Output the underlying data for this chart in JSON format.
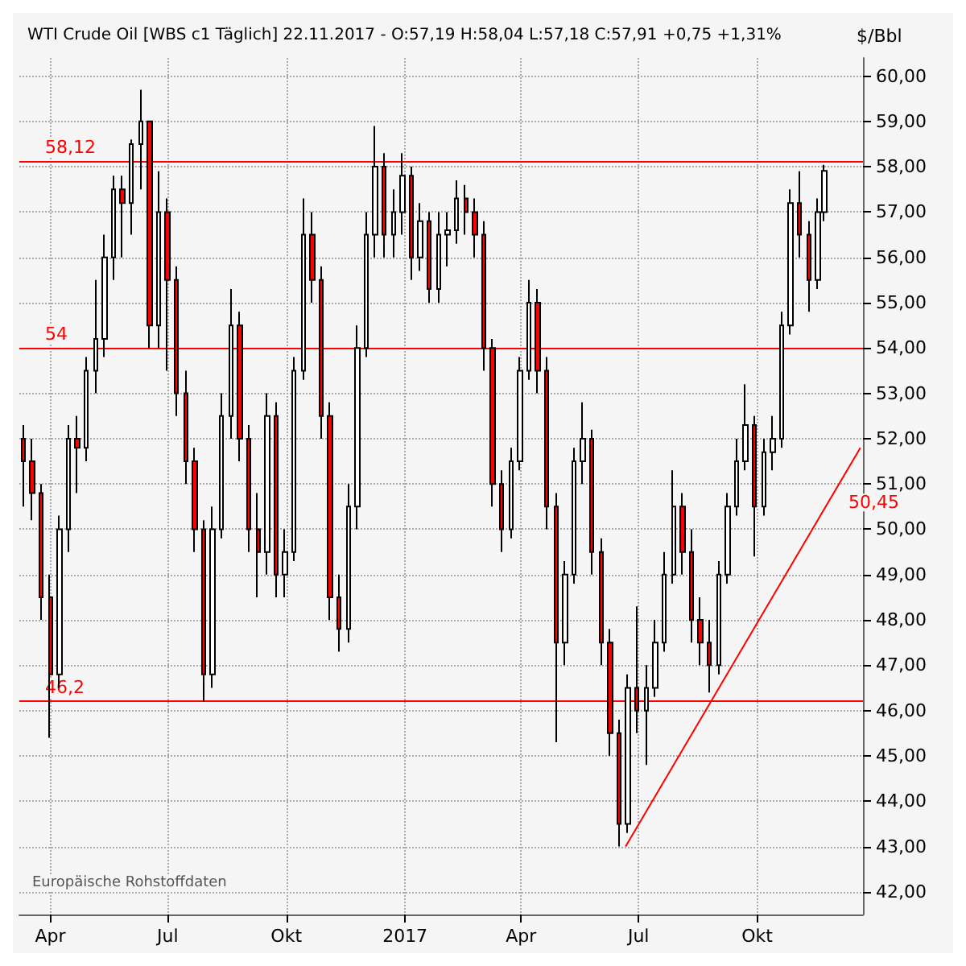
{
  "chart_data": {
    "type": "candlestick",
    "title": "WTI Crude Oil [WBS c1 Täglich] 22.11.2017 - O:57,19 H:58,04 L:57,18 C:57,91 +0,75 +1,31%",
    "ylabel": "$/Bbl",
    "x": [
      "2016-03-11",
      "2016-03-18",
      "2016-03-25",
      "2016-04-01",
      "2016-04-08",
      "2016-04-15",
      "2016-04-22",
      "2016-04-29",
      "2016-05-06",
      "2016-05-13",
      "2016-05-20",
      "2016-05-27",
      "2016-06-03",
      "2016-06-10",
      "2016-06-17",
      "2016-06-24",
      "2016-07-01",
      "2016-07-08",
      "2016-07-15",
      "2016-07-22",
      "2016-07-29",
      "2016-08-05",
      "2016-08-12",
      "2016-08-19",
      "2016-08-26",
      "2016-09-02",
      "2016-09-09",
      "2016-09-16",
      "2016-09-23",
      "2016-09-30",
      "2016-10-07",
      "2016-10-14",
      "2016-10-21",
      "2016-10-28",
      "2016-11-04",
      "2016-11-11",
      "2016-11-18",
      "2016-11-25",
      "2016-12-02",
      "2016-12-09",
      "2016-12-16",
      "2016-12-23",
      "2016-12-30",
      "2017-01-06",
      "2017-01-13",
      "2017-01-20",
      "2017-01-27",
      "2017-02-03",
      "2017-02-10",
      "2017-02-17",
      "2017-02-24",
      "2017-03-03",
      "2017-03-10",
      "2017-03-17",
      "2017-03-24",
      "2017-03-31",
      "2017-04-07",
      "2017-04-14",
      "2017-04-21",
      "2017-04-28",
      "2017-05-05",
      "2017-05-12",
      "2017-05-19",
      "2017-05-26",
      "2017-06-02",
      "2017-06-09",
      "2017-06-16",
      "2017-06-23",
      "2017-06-30",
      "2017-07-07",
      "2017-07-14",
      "2017-07-21",
      "2017-07-28",
      "2017-08-04",
      "2017-08-11",
      "2017-08-18",
      "2017-08-25",
      "2017-09-01",
      "2017-09-08",
      "2017-09-15",
      "2017-09-22",
      "2017-09-29",
      "2017-10-06",
      "2017-10-13",
      "2017-10-20",
      "2017-10-27",
      "2017-11-03",
      "2017-11-10",
      "2017-11-17",
      "2017-11-22"
    ],
    "ohlc": [
      [
        52.0,
        52.3,
        50.5,
        51.5
      ],
      [
        51.5,
        52.0,
        50.2,
        50.8
      ],
      [
        50.8,
        51.0,
        48.0,
        48.5
      ],
      [
        48.5,
        49.0,
        45.4,
        46.8
      ],
      [
        46.8,
        50.3,
        46.5,
        50.0
      ],
      [
        50.0,
        52.3,
        49.5,
        52.0
      ],
      [
        52.0,
        52.5,
        50.8,
        51.8
      ],
      [
        51.8,
        53.8,
        51.5,
        53.5
      ],
      [
        53.5,
        55.5,
        53.0,
        54.2
      ],
      [
        54.2,
        56.5,
        53.8,
        56.0
      ],
      [
        56.0,
        57.8,
        55.5,
        57.5
      ],
      [
        57.5,
        57.8,
        56.0,
        57.2
      ],
      [
        57.2,
        58.6,
        56.5,
        58.5
      ],
      [
        58.5,
        59.7,
        57.5,
        59.0
      ],
      [
        59.0,
        59.0,
        54.0,
        54.5
      ],
      [
        54.5,
        57.9,
        54.0,
        57.0
      ],
      [
        57.0,
        57.3,
        53.5,
        55.5
      ],
      [
        55.5,
        55.8,
        52.5,
        53.0
      ],
      [
        53.0,
        53.5,
        51.0,
        51.5
      ],
      [
        51.5,
        51.8,
        49.5,
        50.0
      ],
      [
        50.0,
        50.2,
        46.2,
        46.8
      ],
      [
        46.8,
        50.5,
        46.5,
        50.0
      ],
      [
        50.0,
        53.0,
        49.8,
        52.5
      ],
      [
        52.5,
        55.3,
        52.0,
        54.5
      ],
      [
        54.5,
        54.8,
        51.5,
        52.0
      ],
      [
        52.0,
        52.3,
        49.5,
        50.0
      ],
      [
        50.0,
        50.8,
        48.5,
        49.5
      ],
      [
        49.5,
        53.0,
        49.0,
        52.5
      ],
      [
        52.5,
        52.8,
        48.5,
        49.0
      ],
      [
        49.0,
        50.0,
        48.5,
        49.5
      ],
      [
        49.5,
        53.8,
        49.3,
        53.5
      ],
      [
        53.5,
        57.3,
        53.3,
        56.5
      ],
      [
        56.5,
        57.0,
        55.0,
        55.5
      ],
      [
        55.5,
        55.8,
        52.0,
        52.5
      ],
      [
        52.5,
        52.8,
        48.0,
        48.5
      ],
      [
        48.5,
        49.0,
        47.3,
        47.8
      ],
      [
        47.8,
        51.0,
        47.5,
        50.5
      ],
      [
        50.5,
        54.5,
        50.0,
        54.0
      ],
      [
        54.0,
        57.0,
        53.8,
        56.5
      ],
      [
        56.5,
        58.9,
        56.0,
        58.0
      ],
      [
        58.0,
        58.3,
        56.0,
        56.5
      ],
      [
        56.5,
        57.5,
        56.0,
        57.0
      ],
      [
        57.0,
        58.3,
        56.5,
        57.8
      ],
      [
        57.8,
        58.0,
        55.5,
        56.0
      ],
      [
        56.0,
        57.2,
        55.7,
        56.8
      ],
      [
        56.8,
        57.0,
        55.0,
        55.3
      ],
      [
        55.3,
        57.0,
        55.0,
        56.5
      ],
      [
        56.5,
        57.0,
        55.8,
        56.6
      ],
      [
        56.6,
        57.7,
        56.3,
        57.3
      ],
      [
        57.3,
        57.6,
        56.5,
        57.0
      ],
      [
        57.0,
        57.3,
        56.0,
        56.5
      ],
      [
        56.5,
        56.8,
        53.5,
        54.0
      ],
      [
        54.0,
        54.2,
        50.5,
        51.0
      ],
      [
        51.0,
        51.3,
        49.5,
        50.0
      ],
      [
        50.0,
        51.8,
        49.8,
        51.5
      ],
      [
        51.5,
        53.8,
        51.3,
        53.5
      ],
      [
        53.5,
        55.5,
        53.3,
        55.0
      ],
      [
        55.0,
        55.3,
        53.0,
        53.5
      ],
      [
        53.5,
        53.8,
        50.0,
        50.5
      ],
      [
        50.5,
        50.8,
        45.3,
        47.5
      ],
      [
        47.5,
        49.3,
        47.0,
        49.0
      ],
      [
        49.0,
        51.8,
        48.8,
        51.5
      ],
      [
        51.5,
        52.8,
        51.0,
        52.0
      ],
      [
        52.0,
        52.2,
        49.0,
        49.5
      ],
      [
        49.5,
        49.8,
        47.0,
        47.5
      ],
      [
        47.5,
        47.8,
        45.0,
        45.5
      ],
      [
        45.5,
        45.8,
        43.0,
        43.5
      ],
      [
        43.5,
        46.8,
        43.3,
        46.5
      ],
      [
        46.5,
        48.3,
        45.5,
        46.0
      ],
      [
        46.0,
        47.0,
        44.8,
        46.5
      ],
      [
        46.5,
        48.0,
        46.3,
        47.5
      ],
      [
        47.5,
        49.5,
        47.3,
        49.0
      ],
      [
        49.0,
        51.3,
        48.8,
        50.5
      ],
      [
        50.5,
        50.8,
        49.0,
        49.5
      ],
      [
        49.5,
        50.0,
        47.5,
        48.0
      ],
      [
        48.0,
        48.5,
        47.0,
        47.5
      ],
      [
        47.5,
        48.0,
        46.4,
        47.0
      ],
      [
        47.0,
        49.3,
        46.8,
        49.0
      ],
      [
        49.0,
        50.8,
        48.8,
        50.5
      ],
      [
        50.5,
        52.0,
        50.3,
        51.5
      ],
      [
        51.5,
        53.2,
        51.3,
        52.3
      ],
      [
        52.3,
        52.5,
        49.4,
        50.5
      ],
      [
        50.5,
        52.0,
        50.3,
        51.7
      ],
      [
        51.7,
        52.5,
        51.3,
        52.0
      ],
      [
        52.0,
        54.8,
        51.8,
        54.5
      ],
      [
        54.5,
        57.5,
        54.3,
        57.2
      ],
      [
        57.2,
        57.9,
        56.0,
        56.5
      ],
      [
        56.5,
        56.8,
        54.8,
        55.5
      ],
      [
        55.5,
        57.3,
        55.3,
        57.0
      ],
      [
        57.0,
        58.04,
        56.8,
        57.91
      ]
    ],
    "colors": [
      "#ff0000",
      "#ff0000",
      "#ff0000",
      "#ff0000",
      "#ffffff",
      "#ffffff",
      "#ff0000",
      "#ffffff",
      "#ffffff",
      "#ffffff",
      "#ffffff",
      "#ff0000",
      "#ffffff",
      "#ffffff",
      "#ff0000",
      "#ffffff",
      "#ff0000",
      "#ff0000",
      "#ff0000",
      "#ff0000",
      "#ff0000",
      "#ffffff",
      "#ffffff",
      "#ffffff",
      "#ff0000",
      "#ff0000",
      "#ff0000",
      "#ffffff",
      "#ff0000",
      "#ffffff",
      "#ffffff",
      "#ffffff",
      "#ff0000",
      "#ff0000",
      "#ff0000",
      "#ff0000",
      "#ffffff",
      "#ffffff",
      "#ffffff",
      "#ffffff",
      "#ff0000",
      "#ffffff",
      "#ffffff",
      "#ff0000",
      "#ffffff",
      "#ff0000",
      "#ffffff",
      "#ffffff",
      "#ffffff",
      "#ff0000",
      "#ff0000",
      "#ff0000",
      "#ff0000",
      "#ff0000",
      "#ffffff",
      "#ffffff",
      "#ffffff",
      "#ff0000",
      "#ff0000",
      "#ff0000",
      "#ffffff",
      "#ffffff",
      "#ffffff",
      "#ff0000",
      "#ff0000",
      "#ff0000",
      "#ff0000",
      "#ffffff",
      "#ff0000",
      "#ffffff",
      "#ffffff",
      "#ffffff",
      "#ffffff",
      "#ff0000",
      "#ff0000",
      "#ff0000",
      "#ff0000",
      "#ffffff",
      "#ffffff",
      "#ffffff",
      "#ffffff",
      "#ff0000",
      "#ffffff",
      "#ffffff",
      "#ffffff",
      "#ffffff",
      "#ff0000",
      "#ff0000",
      "#ffffff",
      "#ffffff"
    ],
    "series": [
      {
        "type": "line",
        "x": [
          "2017-06-21",
          "2017-12-20"
        ],
        "values": [
          43.0,
          51.8
        ],
        "color": "#ff0000"
      }
    ],
    "ref_lines": [
      {
        "axis": "y",
        "value": 58.12,
        "label": "58,12",
        "color": "#ff0000"
      },
      {
        "axis": "y",
        "value": 54,
        "label": "54",
        "color": "#ff0000"
      },
      {
        "axis": "y",
        "value": 46.2,
        "label": "46,2",
        "color": "#ff0000"
      }
    ],
    "annotations": [
      {
        "text": "50,45",
        "x": "2017-11-22",
        "y": 50.45
      },
      "Europäische Rohstoffdaten"
    ],
    "xlim": [
      "2016-03-08",
      "2017-12-22"
    ],
    "xticks": [
      {
        "value": "2016-04-01",
        "label": "Apr"
      },
      {
        "value": "2016-07-01",
        "label": "Jul"
      },
      {
        "value": "2016-10-01",
        "label": "Okt"
      },
      {
        "value": "2017-01-01",
        "label": "2017"
      },
      {
        "value": "2017-04-01",
        "label": "Apr"
      },
      {
        "value": "2017-07-01",
        "label": "Jul"
      },
      {
        "value": "2017-10-01",
        "label": "Okt"
      }
    ],
    "ylim": [
      41.5,
      60.4
    ],
    "yticks": [
      {
        "value": 42,
        "label": "42,00"
      },
      {
        "value": 43,
        "label": "43,00"
      },
      {
        "value": 44,
        "label": "44,00"
      },
      {
        "value": 45,
        "label": "45,00"
      },
      {
        "value": 46,
        "label": "46,00"
      },
      {
        "value": 47,
        "label": "47,00"
      },
      {
        "value": 48,
        "label": "48,00"
      },
      {
        "value": 49,
        "label": "49,00"
      },
      {
        "value": 50,
        "label": "50,00"
      },
      {
        "value": 51,
        "label": "51,00"
      },
      {
        "value": 52,
        "label": "52,00"
      },
      {
        "value": 53,
        "label": "53,00"
      },
      {
        "value": 54,
        "label": "54,00"
      },
      {
        "value": 55,
        "label": "55,00"
      },
      {
        "value": 56,
        "label": "56,00"
      },
      {
        "value": 57,
        "label": "57,00"
      },
      {
        "value": 58,
        "label": "58,00"
      },
      {
        "value": 59,
        "label": "59,00"
      },
      {
        "value": 60,
        "label": "60,00"
      }
    ],
    "grid": true
  }
}
